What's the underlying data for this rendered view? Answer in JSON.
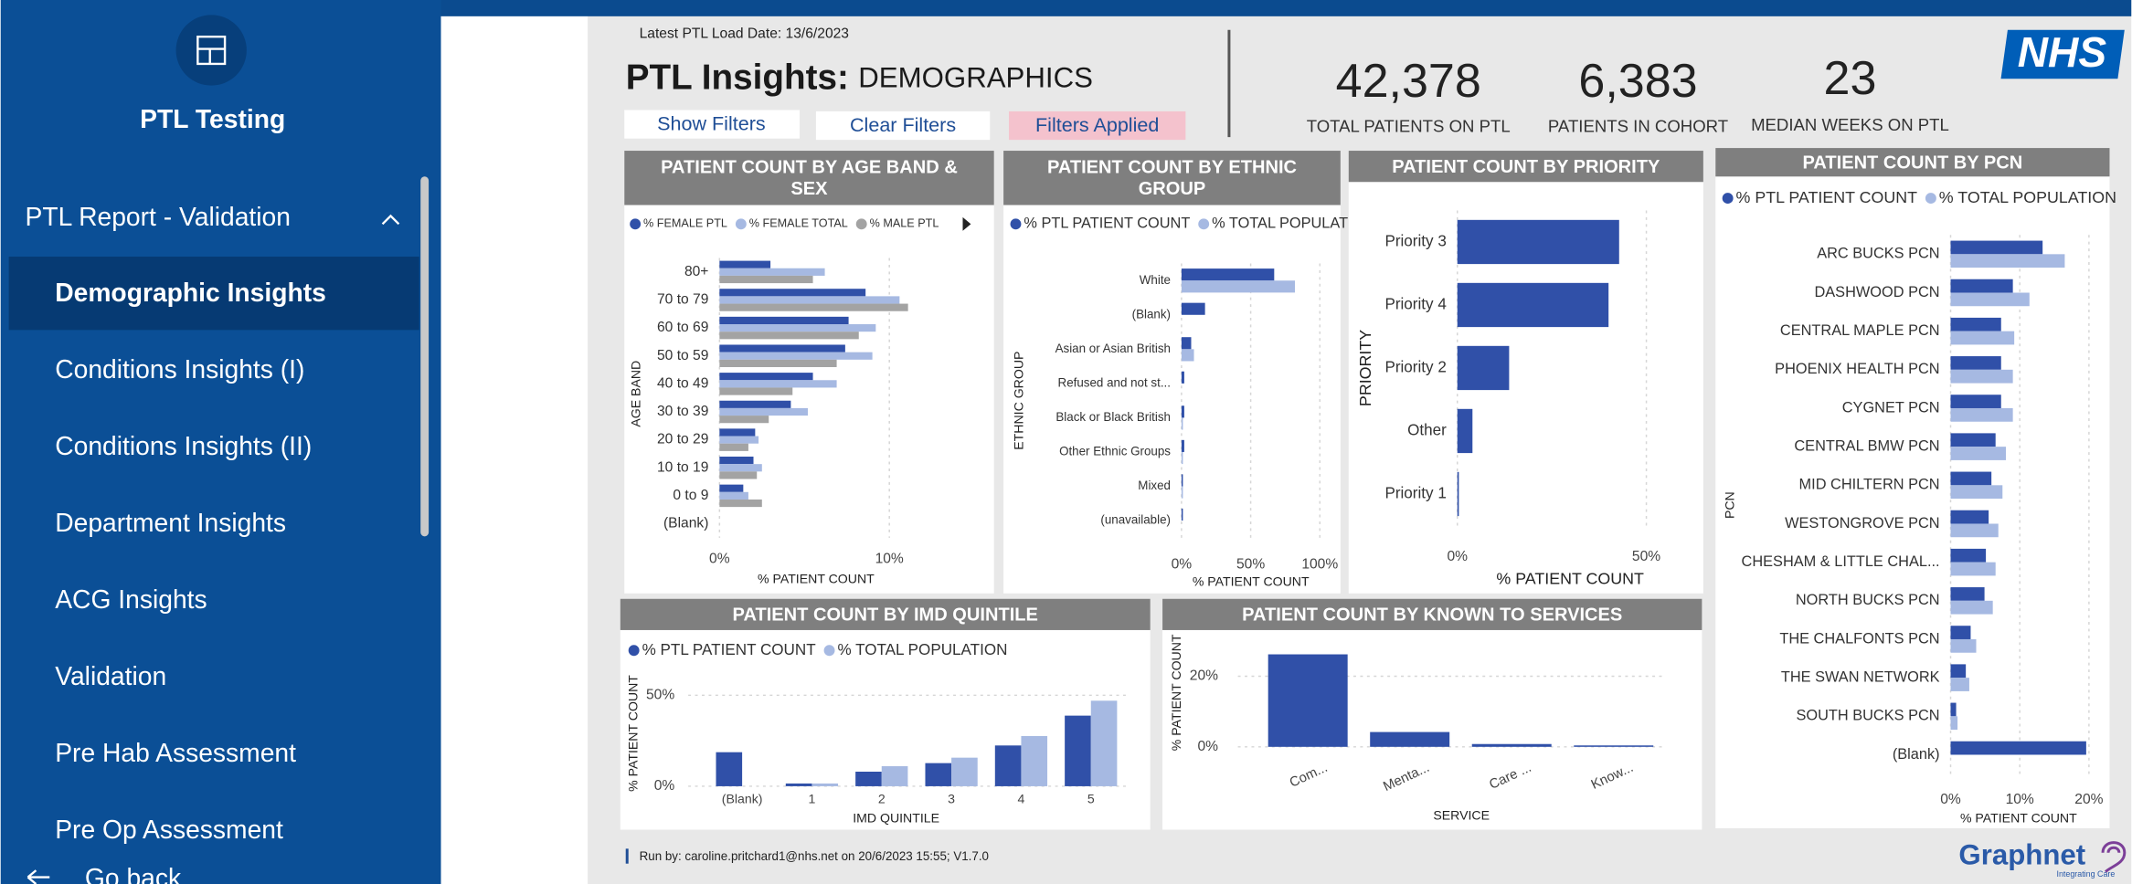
{
  "sidebar": {
    "title": "PTL Testing",
    "section": "PTL Report - Validation",
    "items": [
      "Demographic Insights",
      "Conditions Insights (I)",
      "Conditions Insights (II)",
      "Department Insights",
      "ACG Insights",
      "Validation",
      "Pre Hab Assessment",
      "Pre Op Assessment"
    ],
    "back": "Go back"
  },
  "header": {
    "load_date": "Latest PTL Load Date: 13/6/2023",
    "title": "PTL Insights:",
    "subtitle": "DEMOGRAPHICS",
    "buttons": [
      "Show Filters",
      "Clear Filters",
      "Filters Applied"
    ]
  },
  "kpis": [
    {
      "value": "42,378",
      "label": "TOTAL PATIENTS ON PTL"
    },
    {
      "value": "6,383",
      "label": "PATIENTS IN COHORT"
    },
    {
      "value": "23",
      "label": "MEDIAN WEEKS ON PTL"
    }
  ],
  "logos": {
    "nhs": "NHS",
    "graphnet": "Graphnet",
    "tagline": "Integrating Care"
  },
  "footer": "Run by: caroline.pritchard1@nhs.net on 20/6/2023 15:55; V1.7.0",
  "chart_data": [
    {
      "type": "bar",
      "orientation": "horizontal",
      "title": "PATIENT COUNT BY AGE BAND & SEX",
      "categories": [
        "80+",
        "70 to 79",
        "60 to 69",
        "50 to 59",
        "40 to 49",
        "30 to 39",
        "20 to 29",
        "10 to 19",
        "0 to 9",
        "(Blank)"
      ],
      "series": [
        {
          "name": "% FEMALE PTL",
          "color": "#3050a8",
          "values": [
            3.0,
            8.6,
            7.6,
            7.4,
            5.5,
            4.2,
            2.1,
            2.0,
            1.4,
            0
          ]
        },
        {
          "name": "% FEMALE TOTAL",
          "color": "#a6b9e2",
          "values": [
            6.2,
            10.6,
            9.2,
            9.0,
            6.9,
            5.2,
            2.3,
            2.5,
            1.7,
            0
          ]
        },
        {
          "name": "% MALE PTL",
          "color": "#a3a3a3",
          "values": [
            5.5,
            11.1,
            8.2,
            6.9,
            4.3,
            2.9,
            1.7,
            2.2,
            2.5,
            0
          ]
        }
      ],
      "xlim": [
        0,
        15
      ],
      "xticks": [
        {
          "value": 0,
          "label": "0%"
        },
        {
          "value": 10,
          "label": "10%"
        }
      ],
      "xlabel": "% PATIENT COUNT",
      "ylabel": "AGE BAND",
      "grid": true
    },
    {
      "type": "bar",
      "orientation": "horizontal",
      "title": "PATIENT COUNT BY ETHNIC GROUP",
      "categories": [
        "White",
        "(Blank)",
        "Asian or Asian British",
        "Refused and not st...",
        "Black or Black British",
        "Other Ethnic Groups",
        "Mixed",
        "(unavailable)"
      ],
      "series": [
        {
          "name": "% PTL PATIENT COUNT",
          "color": "#3050a8",
          "values": [
            67,
            17,
            7,
            2,
            2,
            2,
            1,
            1
          ]
        },
        {
          "name": "% TOTAL POPULATI...",
          "color": "#a6b9e2",
          "values": [
            82,
            0,
            9,
            0,
            1,
            1,
            1,
            0
          ]
        }
      ],
      "xlim": [
        0,
        110
      ],
      "xticks": [
        {
          "value": 0,
          "label": "0%"
        },
        {
          "value": 50,
          "label": "50%"
        },
        {
          "value": 100,
          "label": "100%"
        }
      ],
      "xlabel": "% PATIENT COUNT",
      "ylabel": "ETHNIC GROUP",
      "grid": true
    },
    {
      "type": "bar",
      "orientation": "horizontal",
      "title": "PATIENT COUNT BY PRIORITY",
      "categories": [
        "Priority 3",
        "Priority 4",
        "Priority 2",
        "Other",
        "Priority 1"
      ],
      "values": [
        42.8,
        40.0,
        13.7,
        4.0,
        0.4
      ],
      "color": "#3050a8",
      "xlim": [
        0,
        55
      ],
      "xticks": [
        {
          "value": 0,
          "label": "0%"
        },
        {
          "value": 50,
          "label": "50%"
        }
      ],
      "xlabel": "% PATIENT COUNT",
      "ylabel": "PRIORITY",
      "grid": true
    },
    {
      "type": "bar",
      "orientation": "horizontal",
      "title": "PATIENT COUNT BY PCN",
      "categories": [
        "ARC BUCKS PCN",
        "DASHWOOD PCN",
        "CENTRAL MAPLE PCN",
        "PHOENIX HEALTH PCN",
        "CYGNET PCN",
        "CENTRAL BMW PCN",
        "MID CHILTERN PCN",
        "WESTONGROVE PCN",
        "CHESHAM & LITTLE CHAL...",
        "NORTH BUCKS PCN",
        "THE CHALFONTS PCN",
        "THE SWAN NETWORK",
        "SOUTH BUCKS PCN",
        "(Blank)"
      ],
      "series": [
        {
          "name": "% PTL PATIENT COUNT",
          "color": "#3050a8",
          "values": [
            13.3,
            9.0,
            7.3,
            7.3,
            7.3,
            6.5,
            5.9,
            5.5,
            5.1,
            4.9,
            2.9,
            2.2,
            0.8,
            19.6
          ]
        },
        {
          "name": "% TOTAL POPULATION",
          "color": "#a6b9e2",
          "values": [
            16.5,
            11.4,
            9.2,
            9.0,
            9.0,
            8.0,
            7.5,
            6.9,
            6.5,
            6.1,
            3.7,
            2.7,
            1.0,
            0
          ]
        }
      ],
      "xlim": [
        0,
        22
      ],
      "xticks": [
        {
          "value": 0,
          "label": "0%"
        },
        {
          "value": 10,
          "label": "10%"
        },
        {
          "value": 20,
          "label": "20%"
        }
      ],
      "xlabel": "% PATIENT COUNT",
      "ylabel": "PCN",
      "grid": true
    },
    {
      "type": "bar",
      "orientation": "vertical",
      "title": "PATIENT COUNT BY IMD QUINTILE",
      "categories": [
        "(Blank)",
        "1",
        "2",
        "3",
        "4",
        "5"
      ],
      "series": [
        {
          "name": "% PTL PATIENT COUNT",
          "color": "#3050a8",
          "values": [
            18.7,
            1.5,
            8.0,
            12.7,
            22.4,
            38.8
          ]
        },
        {
          "name": "% TOTAL POPULATION",
          "color": "#a6b9e2",
          "values": [
            0,
            1.5,
            11.0,
            15.7,
            27.6,
            47.0
          ]
        }
      ],
      "ylim": [
        0,
        60
      ],
      "yticks": [
        {
          "value": 0,
          "label": "0%"
        },
        {
          "value": 50,
          "label": "50%"
        }
      ],
      "xlabel": "IMD QUINTILE",
      "ylabel": "% PATIENT COUNT",
      "grid": true
    },
    {
      "type": "bar",
      "orientation": "vertical",
      "title": "PATIENT COUNT BY KNOWN TO SERVICES",
      "categories": [
        "Com...",
        "Menta...",
        "Care ...",
        "Know..."
      ],
      "values": [
        26.2,
        4.2,
        0.8,
        0.4
      ],
      "color": "#3050a8",
      "ylim": [
        0,
        30
      ],
      "yticks": [
        {
          "value": 0,
          "label": "0%"
        },
        {
          "value": 20,
          "label": "20%"
        }
      ],
      "xlabel": "SERVICE",
      "ylabel": "% PATIENT COUNT",
      "grid": true
    }
  ]
}
